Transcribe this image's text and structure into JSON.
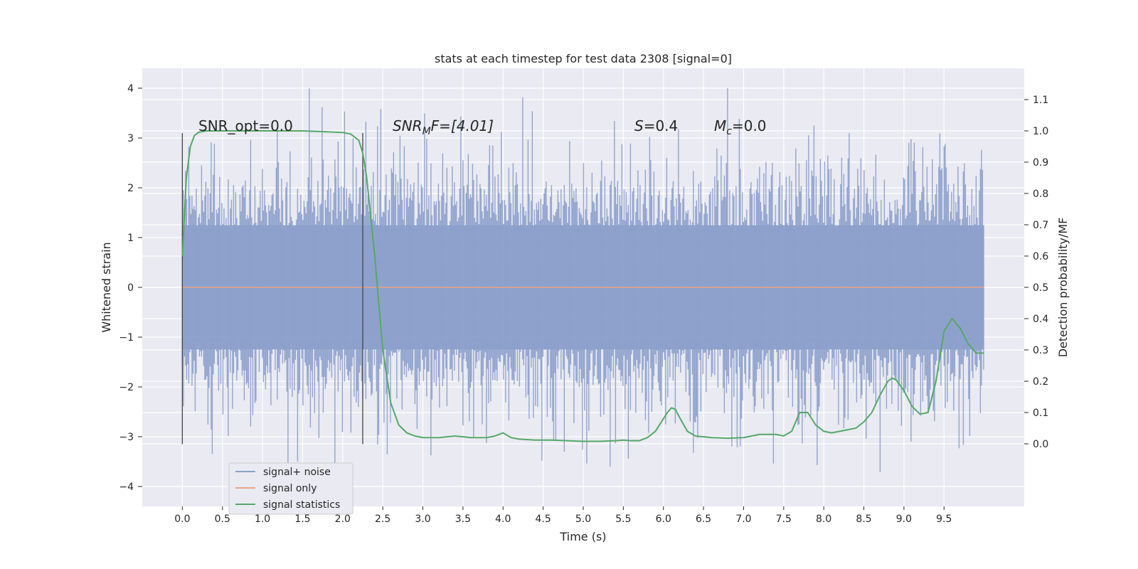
{
  "chart_data": {
    "type": "line",
    "title": "stats at each timestep for test data 2308 [signal=0]",
    "xlabel": "Time (s)",
    "ylabel": "Whitened strain",
    "ylabel_right": "Detection probability/MF",
    "xlim": [
      -0.5,
      10.5
    ],
    "ylim": [
      -4.4,
      4.4
    ],
    "ylim_right": [
      -0.2,
      1.2
    ],
    "x_ticks": [
      "0.0",
      "0.5",
      "1.0",
      "1.5",
      "2.0",
      "2.5",
      "3.0",
      "3.5",
      "4.0",
      "4.5",
      "5.0",
      "5.5",
      "6.0",
      "6.5",
      "7.0",
      "7.5",
      "8.0",
      "8.5",
      "9.0",
      "9.5"
    ],
    "y_ticks": [
      "4",
      "3",
      "2",
      "1",
      "0",
      "−1",
      "−2",
      "−3",
      "−4"
    ],
    "y_ticks_right": [
      "1.1",
      "1.0",
      "0.9",
      "0.8",
      "0.7",
      "0.6",
      "0.5",
      "0.4",
      "0.3",
      "0.2",
      "0.1",
      "0.0"
    ],
    "grid": true,
    "legend_position": "lower-left",
    "series": [
      {
        "name": "signal+ noise",
        "color": "#8da0cb",
        "kind": "noise",
        "x_range": [
          0.0,
          10.0
        ],
        "value_range": [
          -3.9,
          4.0
        ]
      },
      {
        "name": "signal only",
        "color": "#e8a385",
        "kind": "constant",
        "x_range": [
          0.0,
          10.0
        ],
        "value": 0.0
      },
      {
        "name": "signal statistics",
        "color": "#55a868",
        "axis": "right",
        "x": [
          0.0,
          0.05,
          0.1,
          0.15,
          0.2,
          0.3,
          0.5,
          1.0,
          1.5,
          2.0,
          2.1,
          2.2,
          2.25,
          2.3,
          2.4,
          2.5,
          2.6,
          2.7,
          2.8,
          2.9,
          3.0,
          3.2,
          3.4,
          3.6,
          3.8,
          3.9,
          4.0,
          4.1,
          4.2,
          4.4,
          4.6,
          4.8,
          5.0,
          5.2,
          5.4,
          5.5,
          5.6,
          5.7,
          5.8,
          5.9,
          6.0,
          6.05,
          6.1,
          6.15,
          6.2,
          6.3,
          6.4,
          6.6,
          6.8,
          7.0,
          7.2,
          7.4,
          7.5,
          7.6,
          7.65,
          7.7,
          7.8,
          7.9,
          8.0,
          8.1,
          8.2,
          8.4,
          8.5,
          8.6,
          8.7,
          8.8,
          8.85,
          8.9,
          9.0,
          9.1,
          9.2,
          9.3,
          9.4,
          9.5,
          9.6,
          9.7,
          9.8,
          9.9,
          10.0
        ],
        "values": [
          0.6,
          0.85,
          0.95,
          0.985,
          0.995,
          1.0,
          1.0,
          1.0,
          1.0,
          0.995,
          0.99,
          0.97,
          0.93,
          0.85,
          0.6,
          0.3,
          0.13,
          0.06,
          0.035,
          0.025,
          0.02,
          0.02,
          0.025,
          0.02,
          0.02,
          0.025,
          0.035,
          0.02,
          0.015,
          0.012,
          0.012,
          0.01,
          0.008,
          0.008,
          0.01,
          0.012,
          0.01,
          0.01,
          0.02,
          0.04,
          0.08,
          0.1,
          0.115,
          0.11,
          0.085,
          0.04,
          0.025,
          0.02,
          0.018,
          0.02,
          0.03,
          0.03,
          0.025,
          0.04,
          0.07,
          0.1,
          0.1,
          0.06,
          0.04,
          0.035,
          0.04,
          0.05,
          0.07,
          0.1,
          0.155,
          0.2,
          0.21,
          0.205,
          0.17,
          0.12,
          0.095,
          0.1,
          0.2,
          0.36,
          0.4,
          0.37,
          0.32,
          0.29,
          0.29
        ]
      }
    ],
    "annotations": {
      "snr_opt": "SNR_opt=0.0",
      "snr_mf_base": "SNR",
      "snr_mf_sub": "M",
      "snr_mf_rest": "F=[4.01]",
      "s_base": "S",
      "s_rest": "=0.4",
      "mc_base": "M",
      "mc_sub": "c",
      "mc_rest": "=0.0"
    },
    "vertical_markers_x": [
      0.0,
      2.25
    ]
  }
}
